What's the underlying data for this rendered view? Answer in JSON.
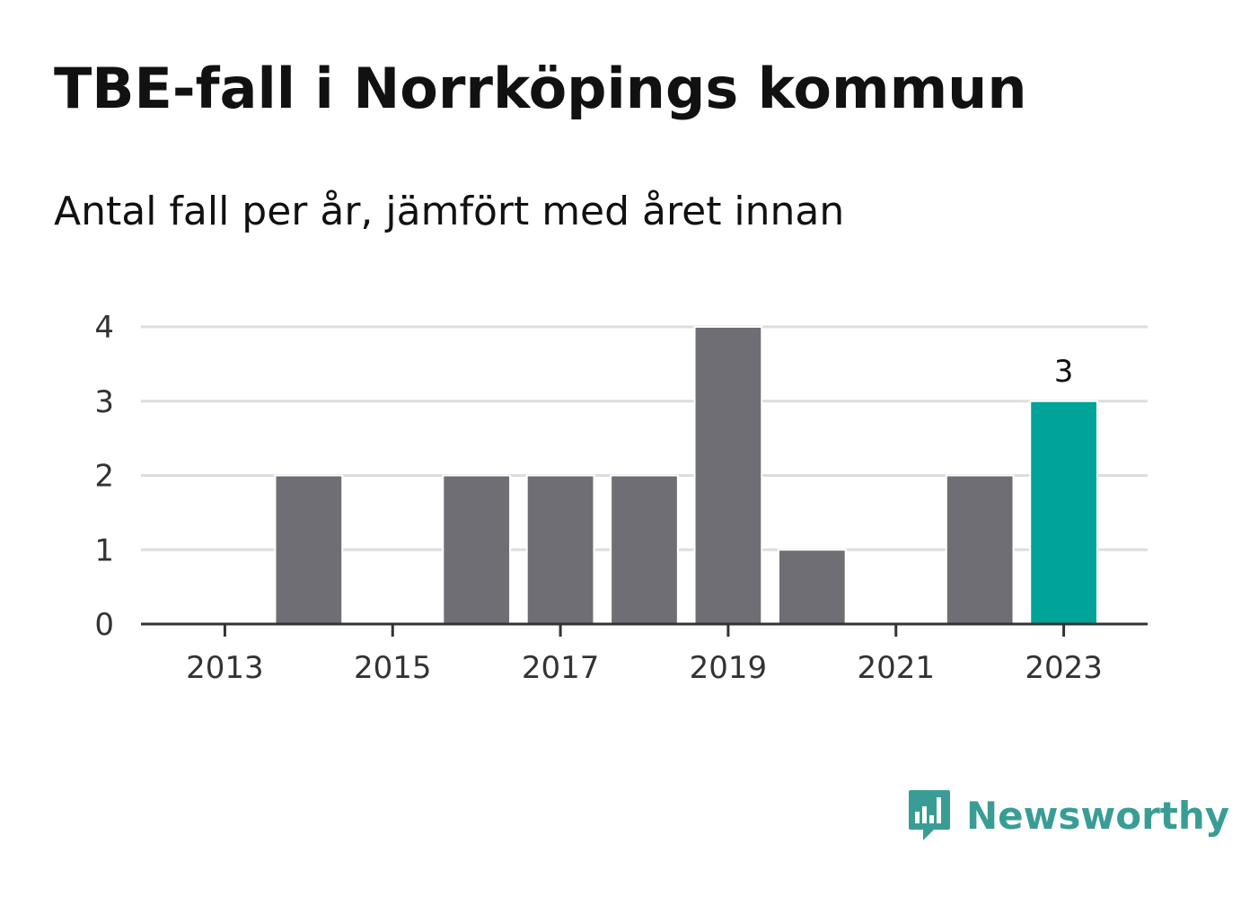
{
  "title": "TBE-fall i Norrköpings kommun",
  "subtitle": "Antal fall per år, jämfört med året innan",
  "brand": {
    "name": "Newsworthy",
    "icon": "bar-chart-speech-bubble-icon",
    "color": "#3a9d95"
  },
  "colors": {
    "bar": "#6f6e74",
    "highlight": "#00a398",
    "grid": "#dddddd",
    "axis": "#333333"
  },
  "chart_data": {
    "type": "bar",
    "categories": [
      "2013",
      "2014",
      "2015",
      "2016",
      "2017",
      "2018",
      "2019",
      "2020",
      "2021",
      "2022",
      "2023"
    ],
    "values": [
      0,
      2,
      0,
      2,
      2,
      2,
      4,
      1,
      0,
      2,
      3
    ],
    "highlight_index": 10,
    "data_labels": [
      {
        "index": 10,
        "text": "3"
      }
    ],
    "x_tick_labels": [
      "2013",
      "2015",
      "2017",
      "2019",
      "2021",
      "2023"
    ],
    "y_ticks": [
      0,
      1,
      2,
      3,
      4
    ],
    "ylim": [
      0,
      4
    ],
    "grid": true,
    "legend": "none"
  }
}
